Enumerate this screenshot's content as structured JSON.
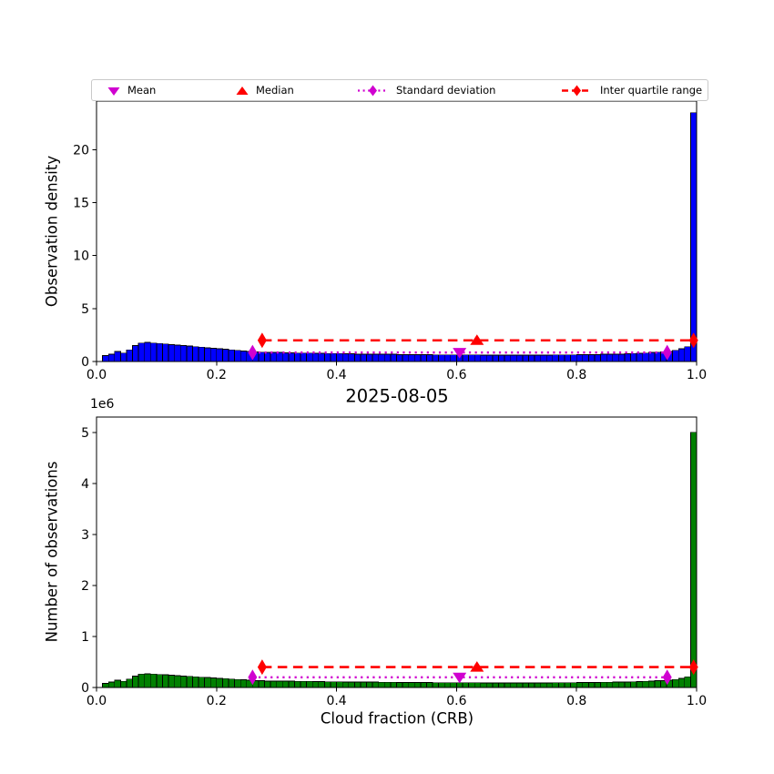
{
  "figure": {
    "title": "2025-08-05",
    "xlabel": "Cloud fraction (CRB)",
    "ylabel_top": "Observation density",
    "ylabel_bottom": "Number of observations",
    "offset_label": "1e6"
  },
  "legend": {
    "items": [
      {
        "label": "Mean",
        "marker": "triangle-down",
        "color": "#d000d0"
      },
      {
        "label": "Median",
        "marker": "triangle-up",
        "color": "#ff0000"
      },
      {
        "label": "Standard deviation",
        "marker": "thin-diamond-dotted-line",
        "color": "#d000d0"
      },
      {
        "label": "Inter quartile range",
        "marker": "thin-diamond-dashed-line",
        "color": "#ff0000"
      }
    ]
  },
  "chart_data": [
    {
      "type": "bar",
      "title": "",
      "xlabel": "",
      "ylabel": "Observation density",
      "bar_color": "#0000ff",
      "edge_color": "#000000",
      "xlim": [
        0,
        1
      ],
      "ylim": [
        0,
        24.6
      ],
      "bin_width": 0.01,
      "xtick_values": [
        0,
        0.2,
        0.4,
        0.6,
        0.8,
        1.0
      ],
      "xtick_labels": [
        "0.0",
        "0.2",
        "0.4",
        "0.6",
        "0.8",
        "1.0"
      ],
      "ytick_values": [
        0,
        5,
        10,
        15,
        20
      ],
      "ytick_labels": [
        "0",
        "5",
        "10",
        "15",
        "20"
      ],
      "values": [
        0.0,
        0.55,
        0.7,
        0.95,
        0.8,
        1.1,
        1.5,
        1.75,
        1.8,
        1.75,
        1.7,
        1.65,
        1.6,
        1.55,
        1.5,
        1.45,
        1.4,
        1.35,
        1.3,
        1.25,
        1.2,
        1.15,
        1.1,
        1.05,
        1.0,
        0.95,
        0.9,
        0.88,
        0.85,
        0.85,
        0.85,
        0.82,
        0.82,
        0.8,
        0.8,
        0.8,
        0.78,
        0.78,
        0.75,
        0.75,
        0.75,
        0.72,
        0.72,
        0.7,
        0.7,
        0.7,
        0.7,
        0.68,
        0.68,
        0.68,
        0.65,
        0.65,
        0.65,
        0.65,
        0.65,
        0.65,
        0.63,
        0.63,
        0.63,
        0.63,
        0.62,
        0.62,
        0.62,
        0.62,
        0.6,
        0.6,
        0.6,
        0.6,
        0.6,
        0.6,
        0.6,
        0.6,
        0.6,
        0.6,
        0.6,
        0.6,
        0.62,
        0.62,
        0.62,
        0.62,
        0.65,
        0.65,
        0.65,
        0.65,
        0.68,
        0.68,
        0.7,
        0.7,
        0.72,
        0.75,
        0.78,
        0.8,
        0.85,
        0.88,
        0.9,
        0.95,
        1.05,
        1.2,
        1.4,
        23.5
      ],
      "stats": {
        "mean_x": 0.605,
        "median_x": 0.634,
        "std_x": [
          0.26,
          0.951
        ],
        "std_y": 0.85,
        "iqr_x": [
          0.276,
          0.995
        ],
        "iqr_y": 2.0
      }
    },
    {
      "type": "bar",
      "title": "2025-08-05",
      "xlabel": "Cloud fraction (CRB)",
      "ylabel": "Number of observations",
      "offset_label": "1e6",
      "bar_color": "#008000",
      "edge_color": "#000000",
      "xlim": [
        0,
        1
      ],
      "ylim": [
        0,
        5300000
      ],
      "bin_width": 0.01,
      "xtick_values": [
        0,
        0.2,
        0.4,
        0.6,
        0.8,
        1.0
      ],
      "xtick_labels": [
        "0.0",
        "0.2",
        "0.4",
        "0.6",
        "0.8",
        "1.0"
      ],
      "ytick_values": [
        0,
        1000000,
        2000000,
        3000000,
        4000000,
        5000000
      ],
      "ytick_labels": [
        "0",
        "1",
        "2",
        "3",
        "4",
        "5"
      ],
      "values": [
        0,
        82500,
        105000,
        142500,
        120000,
        165000,
        225000,
        262500,
        270000,
        262500,
        255000,
        247500,
        240000,
        232500,
        225000,
        217500,
        210000,
        202500,
        195000,
        187500,
        180000,
        172500,
        165000,
        157500,
        150000,
        142500,
        135000,
        132000,
        127500,
        127500,
        127500,
        123000,
        123000,
        120000,
        120000,
        120000,
        117000,
        117000,
        112500,
        112500,
        112500,
        108000,
        108000,
        105000,
        105000,
        105000,
        105000,
        102000,
        102000,
        102000,
        97500,
        97500,
        97500,
        97500,
        97500,
        97500,
        94500,
        94500,
        94500,
        94500,
        93000,
        93000,
        93000,
        93000,
        90000,
        90000,
        90000,
        90000,
        90000,
        90000,
        90000,
        90000,
        90000,
        90000,
        90000,
        90000,
        93000,
        93000,
        93000,
        93000,
        97500,
        97500,
        97500,
        97500,
        102000,
        102000,
        105000,
        105000,
        108000,
        112500,
        117000,
        120000,
        127500,
        132000,
        135000,
        142500,
        157500,
        180000,
        210000,
        5000000
      ],
      "stats": {
        "mean_x": 0.605,
        "median_x": 0.634,
        "std_x": [
          0.26,
          0.951
        ],
        "std_y": 200000,
        "iqr_x": [
          0.276,
          0.995
        ],
        "iqr_y": 400000
      }
    }
  ]
}
